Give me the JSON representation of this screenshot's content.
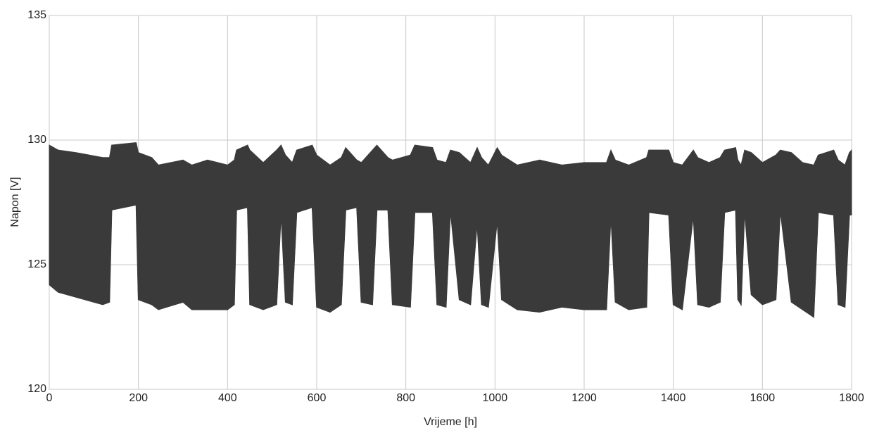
{
  "chart_data": {
    "type": "band",
    "x_label": "Vrijeme [h]",
    "y_label": "Napon [V]",
    "color": "#3a3a3a",
    "x": [
      0,
      20,
      60,
      120,
      135,
      140,
      195,
      200,
      230,
      245,
      300,
      320,
      355,
      400,
      415,
      420,
      445,
      450,
      480,
      510,
      520,
      530,
      545,
      555,
      590,
      600,
      630,
      655,
      665,
      690,
      700,
      725,
      735,
      760,
      770,
      810,
      820,
      860,
      870,
      890,
      900,
      920,
      945,
      960,
      970,
      985,
      1005,
      1015,
      1050,
      1100,
      1150,
      1200,
      1250,
      1260,
      1270,
      1300,
      1340,
      1345,
      1390,
      1400,
      1420,
      1445,
      1455,
      1480,
      1505,
      1515,
      1540,
      1545,
      1552,
      1560,
      1575,
      1600,
      1630,
      1640,
      1665,
      1690,
      1715,
      1725,
      1760,
      1770,
      1785,
      1795,
      1800
    ],
    "upper": [
      129.8,
      129.6,
      129.5,
      129.3,
      129.3,
      129.8,
      129.9,
      129.5,
      129.3,
      129.0,
      129.2,
      129.0,
      129.2,
      129.0,
      129.2,
      129.6,
      129.8,
      129.6,
      129.1,
      129.6,
      129.8,
      129.4,
      129.1,
      129.6,
      129.8,
      129.4,
      129.0,
      129.3,
      129.7,
      129.2,
      129.1,
      129.6,
      129.8,
      129.3,
      129.2,
      129.4,
      129.8,
      129.7,
      129.2,
      129.1,
      129.6,
      129.5,
      129.1,
      129.7,
      129.3,
      129.0,
      129.7,
      129.4,
      129.0,
      129.2,
      129.0,
      129.1,
      129.1,
      129.6,
      129.2,
      129.0,
      129.3,
      129.6,
      129.6,
      129.1,
      129.0,
      129.6,
      129.3,
      129.1,
      129.3,
      129.6,
      129.7,
      129.2,
      129.0,
      129.6,
      129.5,
      129.1,
      129.4,
      129.6,
      129.5,
      129.1,
      129.0,
      129.4,
      129.6,
      129.2,
      129.0,
      129.5,
      129.6
    ],
    "lower": [
      124.2,
      123.9,
      123.7,
      123.4,
      123.5,
      127.2,
      127.4,
      123.6,
      123.4,
      123.2,
      123.5,
      123.2,
      123.2,
      123.2,
      123.4,
      127.2,
      127.3,
      123.4,
      123.2,
      123.4,
      127.1,
      123.5,
      123.4,
      127.1,
      127.3,
      123.3,
      123.1,
      123.4,
      127.2,
      127.3,
      123.5,
      123.4,
      127.2,
      127.2,
      123.4,
      123.3,
      127.1,
      127.1,
      123.4,
      123.3,
      127.2,
      123.6,
      123.4,
      126.7,
      123.4,
      123.3,
      126.8,
      123.6,
      123.2,
      123.1,
      123.3,
      123.2,
      123.2,
      127.0,
      123.5,
      123.2,
      123.3,
      127.1,
      127.0,
      123.4,
      123.2,
      127.0,
      123.4,
      123.3,
      123.5,
      127.1,
      127.2,
      123.6,
      123.4,
      127.2,
      123.8,
      123.4,
      123.6,
      127.2,
      123.5,
      123.2,
      122.9,
      127.1,
      127.0,
      123.4,
      123.3,
      127.0,
      127.0
    ],
    "xlim": [
      0,
      1800
    ],
    "xticks": [
      0,
      200,
      400,
      600,
      800,
      1000,
      1200,
      1400,
      1600,
      1800
    ],
    "ylim": [
      120,
      135
    ],
    "yticks": [
      120,
      125,
      130,
      135
    ],
    "grid": true
  }
}
